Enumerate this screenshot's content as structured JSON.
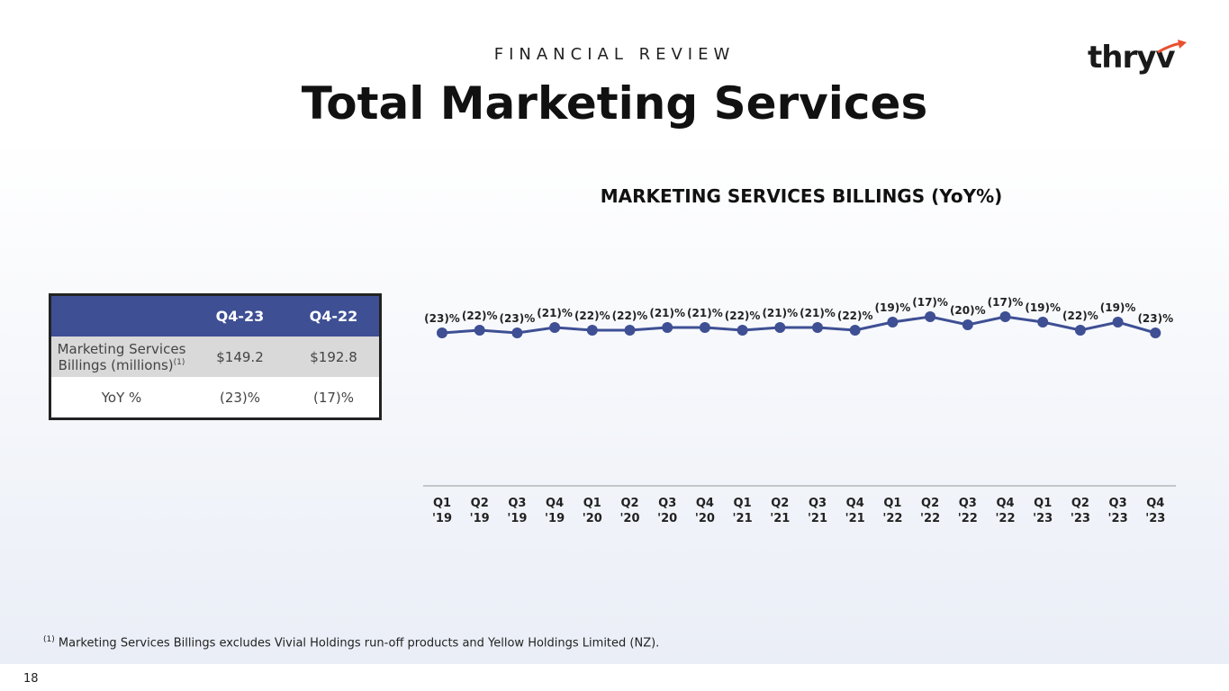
{
  "header": {
    "kicker": "FINANCIAL REVIEW",
    "title": "Total Marketing Services",
    "logo_text": "thryv",
    "brand_color": "#3e4f94",
    "accent_color": "#e8502e"
  },
  "table": {
    "columns": [
      "",
      "Q4-23",
      "Q4-22"
    ],
    "rows": [
      {
        "label": "Marketing Services Billings (millions)",
        "label_line1": "Marketing Services",
        "label_line2": "Billings (millions)",
        "footnote_marker": "(1)",
        "values": [
          "$149.2",
          "$192.8"
        ]
      },
      {
        "label": "YoY %",
        "values": [
          "(23)%",
          "(17)%"
        ]
      }
    ]
  },
  "chart_data": {
    "type": "line",
    "title": "MARKETING SERVICES BILLINGS (YoY%)",
    "categories": [
      "Q1 '19",
      "Q2 '19",
      "Q3 '19",
      "Q4 '19",
      "Q1 '20",
      "Q2 '20",
      "Q3 '20",
      "Q4 '20",
      "Q1 '21",
      "Q2 '21",
      "Q3 '21",
      "Q4 '21",
      "Q1 '22",
      "Q2 '22",
      "Q3 '22",
      "Q4 '22",
      "Q1 '23",
      "Q2 '23",
      "Q3 '23",
      "Q4 '23"
    ],
    "category_lines": [
      [
        "Q1",
        "'19"
      ],
      [
        "Q2",
        "'19"
      ],
      [
        "Q3",
        "'19"
      ],
      [
        "Q4",
        "'19"
      ],
      [
        "Q1",
        "'20"
      ],
      [
        "Q2",
        "'20"
      ],
      [
        "Q3",
        "'20"
      ],
      [
        "Q4",
        "'20"
      ],
      [
        "Q1",
        "'21"
      ],
      [
        "Q2",
        "'21"
      ],
      [
        "Q3",
        "'21"
      ],
      [
        "Q4",
        "'21"
      ],
      [
        "Q1",
        "'22"
      ],
      [
        "Q2",
        "'22"
      ],
      [
        "Q3",
        "'22"
      ],
      [
        "Q4",
        "'22"
      ],
      [
        "Q1",
        "'23"
      ],
      [
        "Q2",
        "'23"
      ],
      [
        "Q3",
        "'23"
      ],
      [
        "Q4",
        "'23"
      ]
    ],
    "series": [
      {
        "values": [
          -23,
          -22,
          -23,
          -21,
          -22,
          -22,
          -21,
          -21,
          -22,
          -21,
          -21,
          -22,
          -19,
          -17,
          -20,
          -17,
          -19,
          -22,
          -19,
          -23
        ],
        "labels": [
          "(23)%",
          "(22)%",
          "(23)%",
          "(21)%",
          "(22)%",
          "(22)%",
          "(21)%",
          "(21)%",
          "(22)%",
          "(21)%",
          "(21)%",
          "(22)%",
          "(19)%",
          "(17)%",
          "(20)%",
          "(17)%",
          "(19)%",
          "(22)%",
          "(19)%",
          "(23)%"
        ]
      }
    ],
    "line_color": "#3e4f94",
    "axis_color": "#999999",
    "grid": false,
    "legend": "none"
  },
  "footnote": {
    "marker": "(1)",
    "text": "Marketing Services Billings excludes Vivial Holdings run-off products and Yellow Holdings Limited (NZ)."
  },
  "page_number": "18"
}
